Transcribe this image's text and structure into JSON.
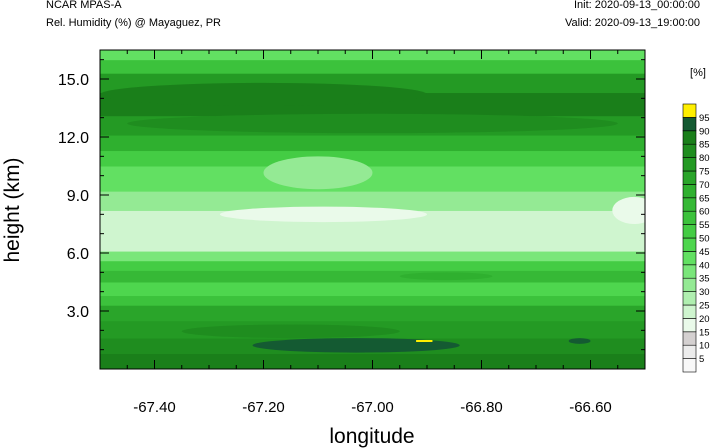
{
  "header": {
    "model": "NCAR MPAS-A",
    "variable": "Rel. Humidity (%) @ Mayaguez, PR",
    "init": "Init: 2020-09-13_00:00:00",
    "valid": "Valid: 2020-09-13_19:00:00"
  },
  "chart_data": {
    "type": "heatmap",
    "xlabel": "longitude",
    "ylabel": "height (km)",
    "xlim": [
      -67.5,
      -66.5
    ],
    "ylim": [
      0.0,
      16.5
    ],
    "x_ticks": [
      -67.4,
      -67.2,
      -67.0,
      -66.8,
      -66.6
    ],
    "x_tick_labels": [
      "-67.40",
      "-67.20",
      "-67.00",
      "-66.80",
      "-66.60"
    ],
    "y_ticks": [
      3.0,
      6.0,
      9.0,
      12.0,
      15.0
    ],
    "y_tick_labels": [
      "3.0",
      "6.0",
      "9.0",
      "12.0",
      "15.0"
    ],
    "colorbar": {
      "unit": "[%]",
      "levels": [
        5,
        10,
        15,
        20,
        25,
        30,
        35,
        40,
        45,
        50,
        55,
        60,
        65,
        70,
        75,
        80,
        85,
        90,
        95
      ],
      "colors": [
        "#f8f8f8",
        "#ececec",
        "#d4d0d0",
        "#eafaea",
        "#cff5cf",
        "#b0efb0",
        "#94ea94",
        "#7ae67a",
        "#62e062",
        "#4ed64e",
        "#44cc44",
        "#3cc23c",
        "#36b936",
        "#2fb02f",
        "#2aa52a",
        "#249a24",
        "#1f8d1f",
        "#1a7f1a",
        "#145a32",
        "#ffef00"
      ]
    },
    "layers": [
      {
        "y": [
          0.0,
          0.8
        ],
        "rh": 85
      },
      {
        "y": [
          0.8,
          1.6
        ],
        "rh": 80
      },
      {
        "y": [
          1.6,
          2.5
        ],
        "rh": 75
      },
      {
        "y": [
          2.5,
          3.3
        ],
        "rh": 70
      },
      {
        "y": [
          3.3,
          3.8
        ],
        "rh": 55
      },
      {
        "y": [
          3.8,
          4.5
        ],
        "rh": 45
      },
      {
        "y": [
          4.5,
          5.1
        ],
        "rh": 60
      },
      {
        "y": [
          5.1,
          5.6
        ],
        "rh": 50
      },
      {
        "y": [
          5.6,
          6.1
        ],
        "rh": 35
      },
      {
        "y": [
          6.1,
          7.0
        ],
        "rh": 20
      },
      {
        "y": [
          7.0,
          8.2
        ],
        "rh": 20
      },
      {
        "y": [
          8.2,
          9.2
        ],
        "rh": 30
      },
      {
        "y": [
          9.2,
          10.5
        ],
        "rh": 40
      },
      {
        "y": [
          10.5,
          11.3
        ],
        "rh": 50
      },
      {
        "y": [
          11.3,
          12.1
        ],
        "rh": 65
      },
      {
        "y": [
          12.1,
          13.1
        ],
        "rh": 75
      },
      {
        "y": [
          13.1,
          14.3
        ],
        "rh": 85
      },
      {
        "y": [
          14.3,
          15.3
        ],
        "rh": 75
      },
      {
        "y": [
          15.3,
          16.0
        ],
        "rh": 55
      },
      {
        "y": [
          16.0,
          16.5
        ],
        "rh": 40
      }
    ],
    "features": [
      {
        "kind": "blob",
        "lon": [
          -67.22,
          -66.84
        ],
        "y": [
          0.85,
          1.6
        ],
        "rh": 90
      },
      {
        "kind": "blob",
        "lon": [
          -67.35,
          -66.95
        ],
        "y": [
          1.6,
          2.3
        ],
        "rh": 80
      },
      {
        "kind": "blob",
        "lon": [
          -67.28,
          -66.9
        ],
        "y": [
          7.6,
          8.4
        ],
        "rh": 15
      },
      {
        "kind": "blob",
        "lon": [
          -66.56,
          -66.48
        ],
        "y": [
          7.5,
          8.9
        ],
        "rh": 15
      },
      {
        "kind": "blob",
        "lon": [
          -67.45,
          -66.55
        ],
        "y": [
          12.2,
          13.2
        ],
        "rh": 80
      },
      {
        "kind": "blob",
        "lon": [
          -67.5,
          -66.9
        ],
        "y": [
          13.6,
          14.8
        ],
        "rh": 85
      },
      {
        "kind": "blob",
        "lon": [
          -67.2,
          -67.0
        ],
        "y": [
          9.3,
          11.0
        ],
        "rh": 30
      },
      {
        "kind": "blob",
        "lon": [
          -66.95,
          -66.78
        ],
        "y": [
          4.6,
          5.0
        ],
        "rh": 65
      },
      {
        "kind": "blob",
        "lon": [
          -66.64,
          -66.6
        ],
        "y": [
          1.3,
          1.6
        ],
        "rh": 90
      },
      {
        "kind": "segment",
        "lon": [
          -66.92,
          -66.89
        ],
        "y": [
          1.45,
          1.45
        ],
        "rh": 95
      }
    ]
  }
}
